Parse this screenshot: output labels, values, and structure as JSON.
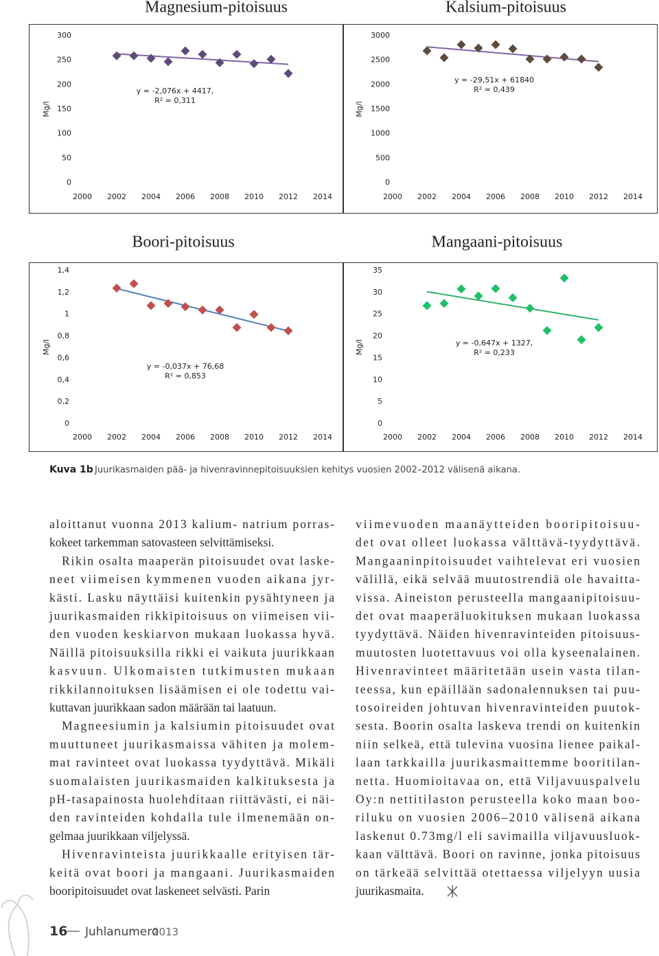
{
  "chart_data": [
    {
      "type": "scatter",
      "title": "Magnesium-pitoisuus",
      "y_label": "Mg/l",
      "x": [
        2002,
        2003,
        2004,
        2005,
        2006,
        2007,
        2008,
        2009,
        2010,
        2011,
        2012
      ],
      "values": [
        259,
        259,
        254,
        247,
        269,
        262,
        245,
        262,
        243,
        252,
        223
      ],
      "xlim": [
        2000,
        2014
      ],
      "xticks": [
        2000,
        2002,
        2004,
        2006,
        2008,
        2010,
        2012,
        2014
      ],
      "ylim": [
        0,
        300
      ],
      "yticks": [
        0,
        50,
        100,
        150,
        200,
        250,
        300
      ],
      "color": "#604a7b",
      "trendline_color": "#8064a2",
      "grid": false,
      "annotations": [
        "y = -2,076x + 4417,",
        "R² = 0,311"
      ]
    },
    {
      "type": "scatter",
      "title": "Kalsium-pitoisuus",
      "y_label": "Mg/l",
      "x": [
        2002,
        2003,
        2004,
        2005,
        2006,
        2007,
        2008,
        2009,
        2010,
        2011,
        2012
      ],
      "values": [
        2692,
        2551,
        2818,
        2748,
        2818,
        2734,
        2523,
        2523,
        2565,
        2523,
        2355
      ],
      "xlim": [
        2000,
        2014
      ],
      "xticks": [
        2000,
        2002,
        2004,
        2006,
        2008,
        2010,
        2012,
        2014
      ],
      "ylim": [
        0,
        3000
      ],
      "yticks": [
        0,
        500,
        1000,
        1500,
        2000,
        2500,
        3000
      ],
      "color": "#5f4b3b",
      "trendline_color": "#8064a2",
      "grid": false,
      "annotations": [
        "y = -29,51x + 61840",
        "R² = 0,439"
      ]
    },
    {
      "type": "scatter",
      "title": "Boori-pitoisuus",
      "y_label": "Mg/l",
      "x": [
        2002,
        2003,
        2004,
        2005,
        2006,
        2007,
        2008,
        2009,
        2010,
        2011,
        2012
      ],
      "values": [
        1.24,
        1.28,
        1.08,
        1.1,
        1.07,
        1.04,
        1.04,
        0.88,
        1.0,
        0.88,
        0.85
      ],
      "xlim": [
        2000,
        2014
      ],
      "xticks": [
        2000,
        2002,
        2004,
        2006,
        2008,
        2010,
        2012,
        2014
      ],
      "ylim": [
        0,
        1.4
      ],
      "yticks": [
        0,
        {
          "value": 0.2,
          "label": "0,2"
        },
        {
          "value": 0.4,
          "label": "0,4"
        },
        {
          "value": 0.6,
          "label": "0,6"
        },
        {
          "value": 0.8,
          "label": "0,8"
        },
        1,
        {
          "value": 1.2,
          "label": "1,2"
        },
        {
          "value": 1.4,
          "label": "1,4"
        }
      ],
      "color": "#c0504d",
      "trendline_color": "#4f81bd",
      "grid": false,
      "annotations": [
        "y = -0,037x + 76,68",
        "R² = 0,853"
      ]
    },
    {
      "type": "scatter",
      "title": "Mangaani-pitoisuus",
      "y_label": "Mg/l",
      "x": [
        2002,
        2003,
        2004,
        2005,
        2006,
        2007,
        2008,
        2009,
        2010,
        2011,
        2012
      ],
      "values": [
        27.0,
        27.5,
        30.8,
        29.2,
        30.9,
        28.8,
        26.4,
        21.3,
        33.3,
        19.2,
        22.0
      ],
      "xlim": [
        2000,
        2014
      ],
      "xticks": [
        2000,
        2002,
        2004,
        2006,
        2008,
        2010,
        2012,
        2014
      ],
      "ylim": [
        0,
        35
      ],
      "yticks": [
        0,
        5,
        10,
        15,
        20,
        25,
        30,
        35
      ],
      "color": "#1fbf68",
      "trendline_color": "#2eb36a",
      "grid": false,
      "annotations": [
        "y = -0,647x + 1327,",
        "R² = 0,233"
      ]
    }
  ],
  "caption": {
    "label": "Kuva 1b",
    "text": "Juurikasmaiden pää- ja hivenravinnepitoisuuksien kehitys vuosien 2002–2012 välisenä aikana."
  },
  "text_columns": [
    [
      [
        "aloittanut vuonna 2013 kalium- natrium porras-",
        "kokeet tarkemman satovasteen selvittämiseksi."
      ],
      [
        "Rikin osalta maaperän pitoisuudet ovat laske-",
        "neet viimeisen kymmenen vuoden aikana jyr-",
        "kästi. Lasku näyttäisi kuitenkin pysähtyneen ja",
        "juurikasmaiden rikkipitoisuus on viimeisen vii-",
        "den vuoden keskiarvon mukaan luokassa hyvä.",
        "Näillä pitoisuuksilla rikki ei vaikuta juurikkaan",
        "kasvuun. Ulkomaisten tutkimusten mukaan",
        "rikkilannoituksen lisäämisen ei ole todettu vai-",
        "kuttavan juurikkaan sadon määrään tai laatuun."
      ],
      [
        "Magneesiumin ja kalsiumin pitoisuudet ovat",
        "muuttuneet juurikasmaissa vähiten ja molem-",
        "mat ravinteet ovat luokassa tyydyttävä. Mikäli",
        "suomalaisten juurikasmaiden kalkituksesta ja",
        "pH-tasapainosta huolehditaan riittävästi, ei näi-",
        "den ravinteiden kohdalla tule ilmenemään on-",
        "gelmaa juurikkaan viljelyssä."
      ],
      [
        "Hivenravinteista juurikkaalle erityisen tär-",
        "keitä ovat boori ja mangaani. Juurikasmaiden",
        "booripitoisuudet ovat laskeneet selvästi. Parin"
      ]
    ],
    [
      [
        "viimevuoden maanäytteiden booripitoisuu-",
        "det ovat olleet luokassa välttävä-tyydyttävä.",
        "Mangaaninpitoisuudet vaihtelevat eri vuosien",
        "välillä, eikä selvää muutostrendiä ole havaitta-",
        "vissa. Aineiston perusteella mangaanipitoisuu-",
        "det ovat maaperäluokituksen mukaan luokassa",
        "tyydyttävä. Näiden hivenravinteiden pitoisuus-",
        "muutosten luotettavuus voi olla kyseenalainen.",
        "Hivenravinteet määritetään usein vasta tilan-",
        "teessa, kun epäillään sadonalennuksen tai puu-",
        "tosoireiden johtuvan hivenravinteiden puutok-",
        "sesta. Boorin osalta laskeva trendi on kuitenkin",
        "niin selkeä, että tulevina vuosina lienee paikal-",
        "laan tarkkailla juurikasmaittemme booritilan-",
        "netta. Huomioitavaa on, että Viljavuuspalvelu",
        "Oy:n nettitilaston perusteella koko maan boo-",
        "riluku on vuosien 2006–2010 välisenä aikana",
        "laskenut 0.73mg/l eli savimailla viljavuusluok-",
        "kaan välttävä. Boori on ravinne, jonka pitoisuus",
        "on tärkeää selvittää otettaessa viljelyyn uusia",
        "juurikasmaita."
      ]
    ]
  ],
  "footer": {
    "page_number": "16",
    "publication": "Juhlanumero",
    "year": "2013"
  }
}
